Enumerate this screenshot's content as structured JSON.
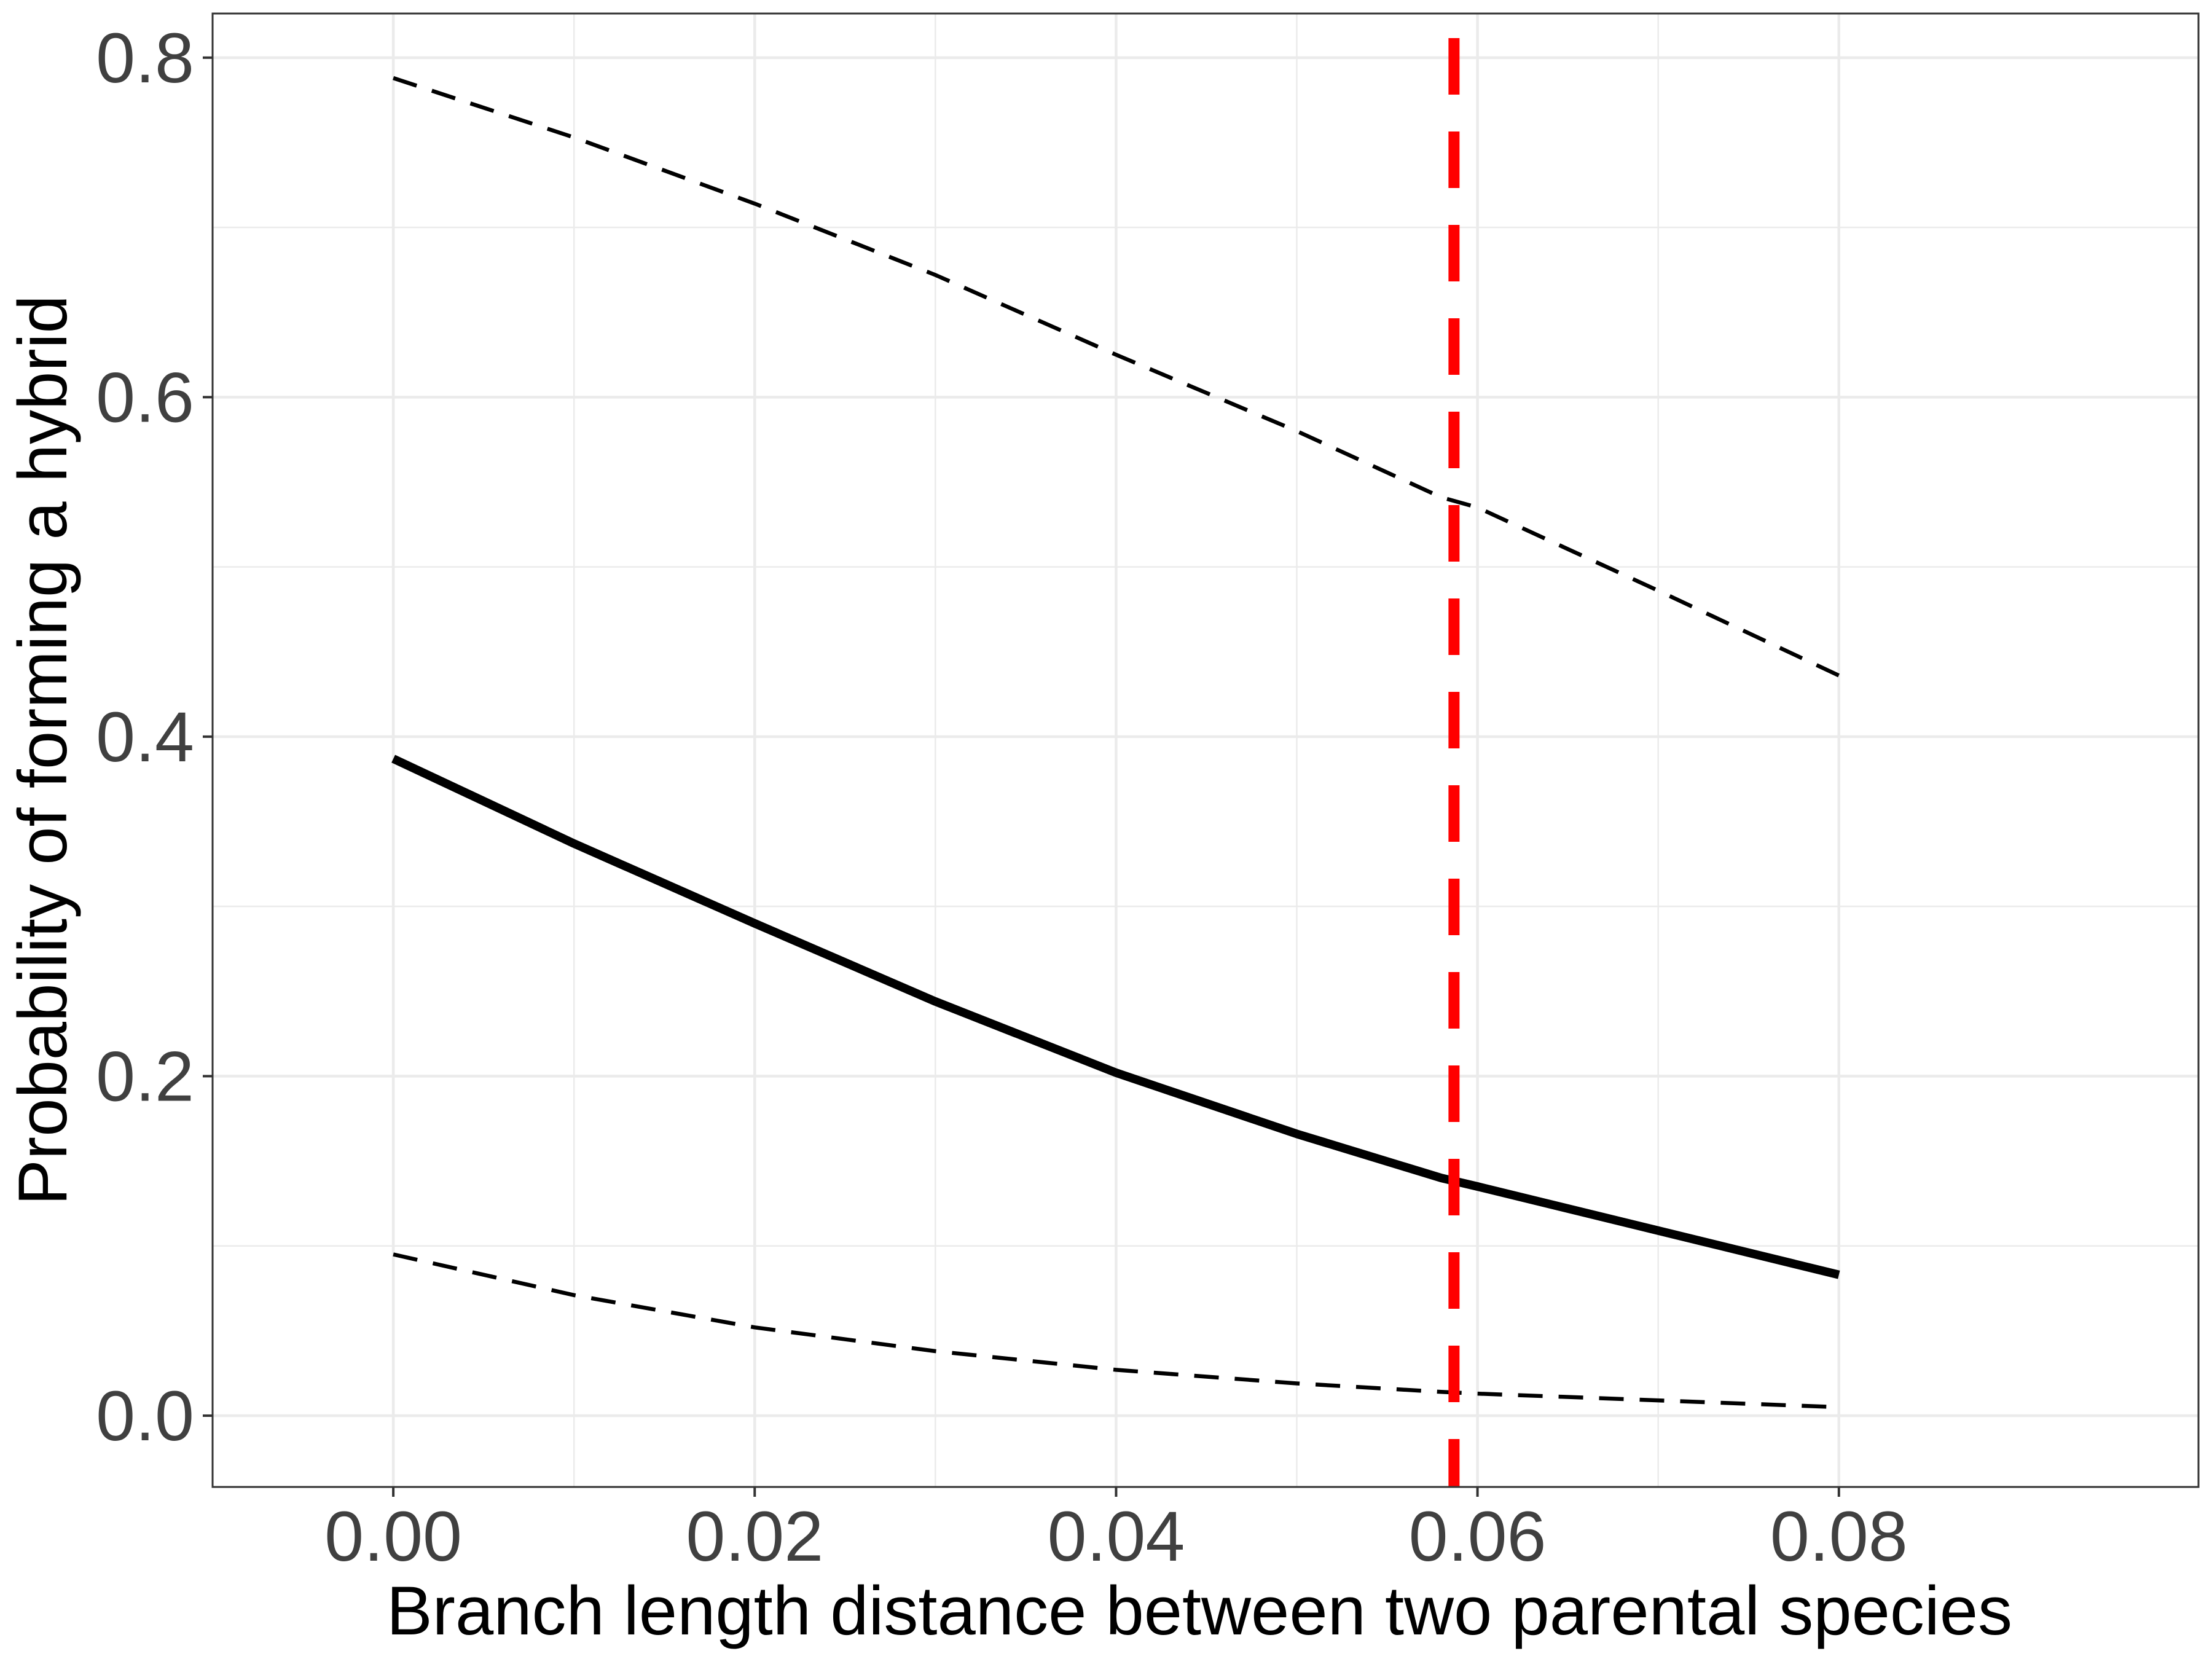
{
  "chart_data": {
    "type": "line",
    "title": "",
    "xlabel": "Branch length distance between two parental species",
    "ylabel": "Probability of forming a hybrid",
    "xlim": [
      -0.01,
      0.0999
    ],
    "ylim": [
      -0.042,
      0.826
    ],
    "x_ticks": [
      0.0,
      0.02,
      0.04,
      0.06,
      0.08
    ],
    "x_tick_labels": [
      "0.00",
      "0.02",
      "0.04",
      "0.06",
      "0.08"
    ],
    "y_ticks": [
      0.0,
      0.2,
      0.4,
      0.6,
      0.8
    ],
    "y_tick_labels": [
      "0.0",
      "0.2",
      "0.4",
      "0.6",
      "0.8"
    ],
    "x_minor_ticks": [
      0.01,
      0.03,
      0.05,
      0.07
    ],
    "y_minor_ticks": [
      0.1,
      0.3,
      0.5,
      0.7
    ],
    "grid": true,
    "legend": "none",
    "series": [
      {
        "role": "estimate",
        "style": "solid",
        "color": "#000000",
        "x": [
          0.0,
          0.01,
          0.02,
          0.03,
          0.04,
          0.05,
          0.058,
          0.06,
          0.07,
          0.08
        ],
        "y": [
          0.387,
          0.337,
          0.29,
          0.244,
          0.202,
          0.166,
          0.14,
          0.135,
          0.109,
          0.083
        ]
      },
      {
        "role": "upper-bound",
        "style": "dashed",
        "color": "#000000",
        "x": [
          0.0,
          0.01,
          0.02,
          0.03,
          0.04,
          0.05,
          0.058,
          0.06,
          0.07,
          0.08
        ],
        "y": [
          0.788,
          0.753,
          0.714,
          0.672,
          0.625,
          0.58,
          0.541,
          0.535,
          0.486,
          0.436
        ]
      },
      {
        "role": "lower-bound",
        "style": "dashed",
        "color": "#000000",
        "x": [
          0.0,
          0.01,
          0.02,
          0.03,
          0.04,
          0.05,
          0.058,
          0.06,
          0.07,
          0.08
        ],
        "y": [
          0.095,
          0.071,
          0.052,
          0.038,
          0.027,
          0.019,
          0.014,
          0.013,
          0.009,
          0.005
        ]
      }
    ],
    "reference_lines": [
      {
        "orientation": "vertical",
        "x": 0.0587,
        "style": "dashed",
        "color": "#ff0000"
      }
    ],
    "colors": {
      "grid": "#ebebeb",
      "panel_border": "#333333",
      "reference": "#ff0000",
      "curves": "#000000"
    }
  }
}
